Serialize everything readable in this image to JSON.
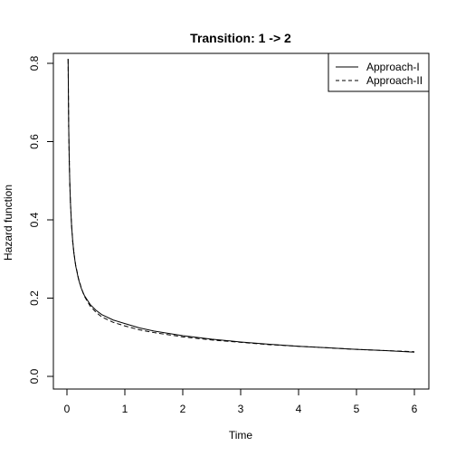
{
  "chart_data": {
    "type": "line",
    "title": "Transition: 1 -> 2",
    "xlabel": "Time",
    "ylabel": "Hazard function",
    "xlim": [
      0,
      6
    ],
    "ylim": [
      0,
      0.8
    ],
    "xticks": [
      0,
      1,
      2,
      3,
      4,
      5,
      6
    ],
    "yticks": [
      0.0,
      0.2,
      0.4,
      0.6,
      0.8
    ],
    "xtick_labels": [
      "0",
      "1",
      "2",
      "3",
      "4",
      "5",
      "6"
    ],
    "ytick_labels": [
      "0.0",
      "0.2",
      "0.4",
      "0.6",
      "0.8"
    ],
    "grid": false,
    "legend_position": "top-right",
    "series": [
      {
        "name": "Approach-I",
        "line_style": "solid",
        "x": [
          0.02,
          0.03,
          0.04,
          0.05,
          0.06,
          0.08,
          0.1,
          0.12,
          0.15,
          0.2,
          0.25,
          0.3,
          0.4,
          0.5,
          0.6,
          0.8,
          1.0,
          1.25,
          1.5,
          2.0,
          2.5,
          3.0,
          3.5,
          4.0,
          4.5,
          5.0,
          5.5,
          6.0
        ],
        "y": [
          0.81,
          0.64,
          0.55,
          0.49,
          0.445,
          0.385,
          0.345,
          0.315,
          0.283,
          0.248,
          0.224,
          0.207,
          0.184,
          0.169,
          0.158,
          0.144,
          0.135,
          0.124,
          0.116,
          0.104,
          0.095,
          0.088,
          0.082,
          0.077,
          0.073,
          0.069,
          0.066,
          0.062
        ]
      },
      {
        "name": "Approach-II",
        "line_style": "dashed",
        "x": [
          0.02,
          0.03,
          0.04,
          0.05,
          0.06,
          0.08,
          0.1,
          0.12,
          0.15,
          0.2,
          0.25,
          0.3,
          0.4,
          0.5,
          0.6,
          0.8,
          1.0,
          1.25,
          1.5,
          2.0,
          2.5,
          3.0,
          3.5,
          4.0,
          4.5,
          5.0,
          5.5,
          6.0
        ],
        "y": [
          0.81,
          0.64,
          0.55,
          0.49,
          0.445,
          0.385,
          0.345,
          0.316,
          0.285,
          0.25,
          0.225,
          0.205,
          0.18,
          0.164,
          0.152,
          0.138,
          0.129,
          0.119,
          0.112,
          0.101,
          0.093,
          0.087,
          0.081,
          0.077,
          0.073,
          0.069,
          0.066,
          0.063
        ]
      }
    ]
  }
}
